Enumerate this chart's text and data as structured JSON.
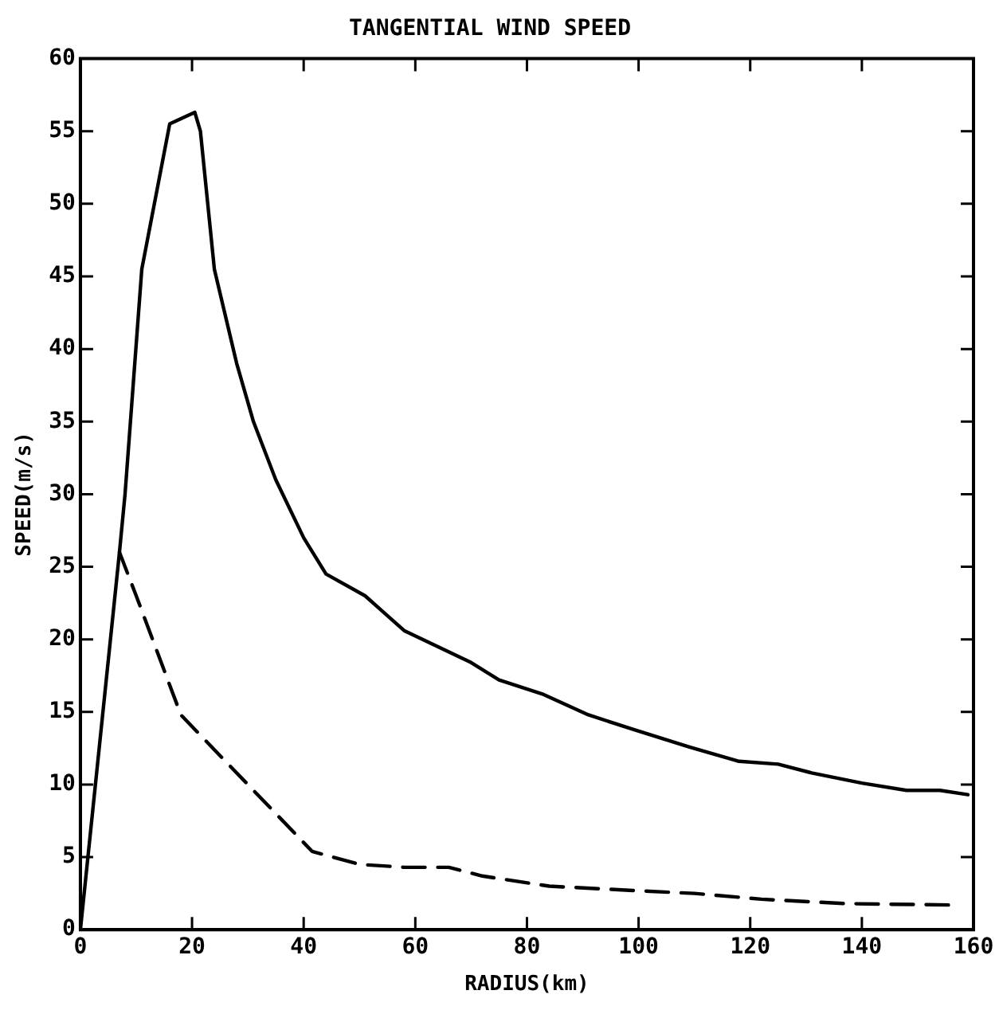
{
  "chart_data": {
    "type": "line",
    "title": "TANGENTIAL WIND SPEED",
    "xlabel": "RADIUS(km)",
    "ylabel": "SPEED(m/s)",
    "xlim": [
      0,
      160
    ],
    "xticks": [
      0,
      20,
      40,
      60,
      80,
      100,
      120,
      140,
      160
    ],
    "ylim": [
      0,
      60
    ],
    "yticks": [
      0,
      5,
      10,
      15,
      20,
      25,
      30,
      35,
      40,
      45,
      50,
      55,
      60
    ],
    "grid": false,
    "legend": false,
    "marker": "none",
    "series": [
      {
        "color": "#000000",
        "line_style": "solid",
        "x": [
          0,
          7,
          8,
          11,
          16,
          20.5,
          21.5,
          24,
          28,
          31,
          35,
          40,
          44,
          51,
          58,
          64,
          70,
          75,
          83,
          91,
          99,
          109,
          118,
          125,
          131,
          140,
          148,
          154,
          159
        ],
        "values": [
          0,
          26,
          30,
          45.5,
          55.5,
          56.3,
          55,
          45.5,
          39,
          35,
          31,
          27,
          24.5,
          23,
          20.6,
          19.5,
          18.4,
          17.2,
          16.2,
          14.8,
          13.8,
          12.6,
          11.6,
          11.4,
          10.8,
          10.1,
          9.6,
          9.6,
          9.3
        ]
      },
      {
        "color": "#000000",
        "line_style": "dashed",
        "x": [
          7,
          10,
          18,
          41.5,
          50,
          58,
          66,
          72,
          84,
          99,
          110,
          122,
          137,
          156
        ],
        "values": [
          26,
          23,
          14.8,
          5.4,
          4.5,
          4.3,
          4.3,
          3.7,
          3,
          2.7,
          2.5,
          2.1,
          1.8,
          1.7
        ]
      }
    ]
  }
}
